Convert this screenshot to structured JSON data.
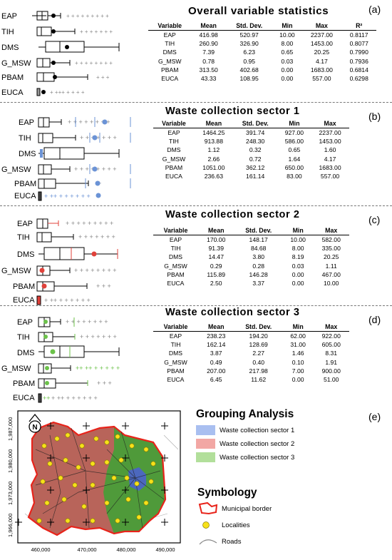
{
  "panels": [
    {
      "label": "(a)",
      "title": "Overall variable statistics",
      "headers": [
        "Variable",
        "Mean",
        "Std. Dev.",
        "Min",
        "Max",
        "R²"
      ],
      "rows": [
        [
          "EAP",
          "416.98",
          "520.97",
          "10.00",
          "2237.00",
          "0.8117"
        ],
        [
          "TIH",
          "260.90",
          "326.90",
          "8.00",
          "1453.00",
          "0.8077"
        ],
        [
          "DMS",
          "7.39",
          "6.23",
          "0.65",
          "20.25",
          "0.7990"
        ],
        [
          "G_MSW",
          "0.78",
          "0.95",
          "0.03",
          "4.17",
          "0.7936"
        ],
        [
          "PBAM",
          "313.50",
          "402.68",
          "0.00",
          "1683.00",
          "0.6814"
        ],
        [
          "EUCA",
          "43.33",
          "108.95",
          "0.00",
          "557.00",
          "0.6298"
        ]
      ]
    },
    {
      "label": "(b)",
      "title": "Waste collection sector 1",
      "headers": [
        "Variable",
        "Mean",
        "Std. Dev.",
        "Min",
        "Max"
      ],
      "rows": [
        [
          "EAP",
          "1464.25",
          "391.74",
          "927.00",
          "2237.00"
        ],
        [
          "TIH",
          "913.88",
          "248.30",
          "586.00",
          "1453.00"
        ],
        [
          "DMS",
          "1.12",
          "0.32",
          "0.65",
          "1.60"
        ],
        [
          "G_MSW",
          "2.66",
          "0.72",
          "1.64",
          "4.17"
        ],
        [
          "PBAM",
          "1051.00",
          "362.12",
          "650.00",
          "1683.00"
        ],
        [
          "EUCA",
          "236.63",
          "161.14",
          "83.00",
          "557.00"
        ]
      ]
    },
    {
      "label": "(c)",
      "title": "Waste collection sector 2",
      "headers": [
        "Variable",
        "Mean",
        "Std. Dev.",
        "Min",
        "Max"
      ],
      "rows": [
        [
          "EAP",
          "170.00",
          "148.17",
          "10.00",
          "582.00"
        ],
        [
          "TIH",
          "91.39",
          "84.68",
          "8.00",
          "335.00"
        ],
        [
          "DMS",
          "14.47",
          "3.80",
          "8.19",
          "20.25"
        ],
        [
          "G_MSW",
          "0.29",
          "0.28",
          "0.03",
          "1.11"
        ],
        [
          "PBAM",
          "115.89",
          "146.28",
          "0.00",
          "467.00"
        ],
        [
          "EUCA",
          "2.50",
          "3.37",
          "0.00",
          "10.00"
        ]
      ]
    },
    {
      "label": "(d)",
      "title": "Waste collection sector 3",
      "headers": [
        "Variable",
        "Mean",
        "Std. Dev.",
        "Min",
        "Max"
      ],
      "rows": [
        [
          "EAP",
          "238.23",
          "194.20",
          "62.00",
          "922.00"
        ],
        [
          "TIH",
          "162.14",
          "128.69",
          "31.00",
          "605.00"
        ],
        [
          "DMS",
          "3.87",
          "2.27",
          "1.46",
          "8.31"
        ],
        [
          "G_MSW",
          "0.49",
          "0.40",
          "0.10",
          "1.91"
        ],
        [
          "PBAM",
          "207.00",
          "217.98",
          "7.00",
          "900.00"
        ],
        [
          "EUCA",
          "6.45",
          "11.62",
          "0.00",
          "51.00"
        ]
      ]
    }
  ],
  "map": {
    "label": "(e)",
    "north": "N",
    "y_ticks": [
      "1,987,000",
      "1,980,000",
      "1,973,000",
      "1,966,000"
    ],
    "x_ticks": [
      "460,000",
      "470,000",
      "480,000",
      "490,000"
    ],
    "legend_title": "Grouping Analysis",
    "sectors": [
      {
        "label": "Waste collection sector 1",
        "color": "#a9bff0"
      },
      {
        "label": "Waste collection sector 2",
        "color": "#f2a7a4"
      },
      {
        "label": "Waste collection sector 3",
        "color": "#b2df9b"
      }
    ],
    "symbology_title": "Symbology",
    "symbols": [
      {
        "label": "Municipal border",
        "icon": "red-outline-polygon-icon"
      },
      {
        "label": "Localities",
        "icon": "yellow-dot-icon"
      },
      {
        "label": "Roads",
        "icon": "road-line-icon"
      }
    ]
  },
  "colors": {
    "sector1": "#6b93d6",
    "sector2": "#e0413a",
    "sector3": "#6cc24a",
    "map_sector1": "#4b5fd6",
    "map_sector2": "#b8645a",
    "map_sector3": "#4f9a3a",
    "border": "#e8231a",
    "locality": "#f7e11a"
  }
}
